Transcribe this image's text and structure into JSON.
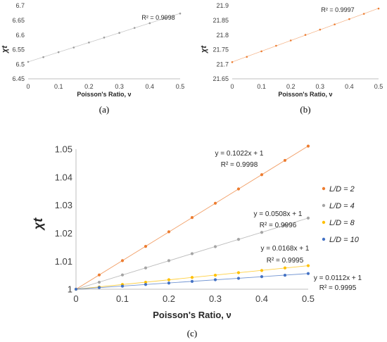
{
  "chart_data": [
    {
      "type": "scatter",
      "caption": "(a)",
      "xlabel": "Poisson's Ratio, ν",
      "ylabel": "χt",
      "xlim": [
        0,
        0.5
      ],
      "ylim": [
        6.45,
        6.7
      ],
      "x_ticks": [
        "0",
        "0.1",
        "0.2",
        "0.3",
        "0.4",
        "0.5"
      ],
      "y_ticks": [
        "6.45",
        "6.5",
        "6.55",
        "6.6",
        "6.65",
        "6.7"
      ],
      "annotation": "R² = 0.9998",
      "trendline": true,
      "grid": false,
      "series": [
        {
          "color": "#9a9a9a",
          "x": [
            0,
            0.05,
            0.1,
            0.15,
            0.2,
            0.25,
            0.3,
            0.35,
            0.4,
            0.45,
            0.5
          ],
          "y": [
            6.508,
            6.524,
            6.541,
            6.557,
            6.574,
            6.591,
            6.607,
            6.624,
            6.64,
            6.657,
            6.673
          ]
        }
      ]
    },
    {
      "type": "scatter",
      "caption": "(b)",
      "xlabel": "Poisson's Ratio, ν",
      "ylabel": "χt",
      "xlim": [
        0,
        0.5
      ],
      "ylim": [
        21.65,
        21.9
      ],
      "x_ticks": [
        "0",
        "0.1",
        "0.2",
        "0.3",
        "0.4",
        "0.5"
      ],
      "y_ticks": [
        "21.65",
        "21.7",
        "21.75",
        "21.8",
        "21.85",
        "21.9"
      ],
      "annotation": "R² = 0.9997",
      "trendline": true,
      "grid": false,
      "series": [
        {
          "color": "#ed7d31",
          "x": [
            0,
            0.05,
            0.1,
            0.15,
            0.2,
            0.25,
            0.3,
            0.35,
            0.4,
            0.45,
            0.5
          ],
          "y": [
            21.707,
            21.725,
            21.744,
            21.763,
            21.781,
            21.8,
            21.818,
            21.836,
            21.854,
            21.872,
            21.89
          ]
        }
      ]
    },
    {
      "type": "scatter",
      "caption": "(c)",
      "xlabel": "Poisson's Ratio, ν",
      "ylabel": "χt",
      "xlim": [
        0,
        0.5
      ],
      "ylim": [
        1,
        1.05
      ],
      "x_ticks": [
        "0",
        "0.1",
        "0.2",
        "0.3",
        "0.4",
        "0.5"
      ],
      "y_ticks": [
        "1",
        "1.01",
        "1.02",
        "1.03",
        "1.04",
        "1.05"
      ],
      "legend": "right",
      "trendline": true,
      "grid": false,
      "series": [
        {
          "name": "L/D = 2",
          "color": "#ed7d31",
          "eq": "y = 0.1022x + 1",
          "r2": "R² = 0.9998",
          "x": [
            0,
            0.05,
            0.1,
            0.15,
            0.2,
            0.25,
            0.3,
            0.35,
            0.4,
            0.45,
            0.5
          ],
          "y": [
            1,
            1.0051,
            1.0102,
            1.0153,
            1.0205,
            1.0256,
            1.0307,
            1.0358,
            1.0409,
            1.046,
            1.0511
          ]
        },
        {
          "name": "L/D = 4",
          "color": "#a5a5a5",
          "eq": "y = 0.0508x + 1",
          "r2": "R² = 0.9996",
          "x": [
            0,
            0.05,
            0.1,
            0.15,
            0.2,
            0.25,
            0.3,
            0.35,
            0.4,
            0.45,
            0.5
          ],
          "y": [
            1,
            1.0025,
            1.0051,
            1.0076,
            1.0102,
            1.0127,
            1.0152,
            1.0178,
            1.0203,
            1.0229,
            1.0254
          ]
        },
        {
          "name": "L/D = 8",
          "color": "#ffc000",
          "eq": "y = 0.0168x + 1",
          "r2": "R² = 0.9995",
          "x": [
            0,
            0.05,
            0.1,
            0.15,
            0.2,
            0.25,
            0.3,
            0.35,
            0.4,
            0.45,
            0.5
          ],
          "y": [
            1,
            1.0008,
            1.0017,
            1.0025,
            1.0034,
            1.0042,
            1.005,
            1.0059,
            1.0067,
            1.0076,
            1.0084
          ]
        },
        {
          "name": "L/D = 10",
          "color": "#4472c4",
          "eq": "y = 0.0112x + 1",
          "r2": "R² = 0.9995",
          "x": [
            0,
            0.05,
            0.1,
            0.15,
            0.2,
            0.25,
            0.3,
            0.35,
            0.4,
            0.45,
            0.5
          ],
          "y": [
            1,
            1.0006,
            1.0011,
            1.0017,
            1.0022,
            1.0028,
            1.0034,
            1.0039,
            1.0045,
            1.005,
            1.0056
          ]
        }
      ]
    }
  ]
}
